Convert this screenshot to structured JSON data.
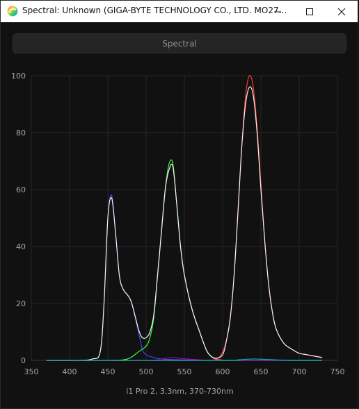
{
  "window": {
    "title": "Spectral: Unknown (GIGA-BYTE TECHNOLOGY CO., LTD. MO27...",
    "icon": "spectral-app-icon"
  },
  "controls": {
    "minimize": "minimize-icon",
    "maximize": "maximize-icon",
    "close": "close-icon"
  },
  "tab": {
    "label": "Spectral"
  },
  "footer": {
    "caption": "i1 Pro 2, 3.3nm, 370-730nm"
  },
  "colors": {
    "background": "#111111",
    "grid": "#262626",
    "blue": "#3a46ff",
    "green": "#39ff3c",
    "red": "#ff3a33",
    "white": "#f2f2f2",
    "magenta": "#a300a8",
    "cyan": "#00b3b3"
  },
  "chart_data": {
    "type": "line",
    "title": "",
    "xlabel": "",
    "ylabel": "",
    "xlim": [
      350,
      750
    ],
    "ylim": [
      0,
      100
    ],
    "grid": true,
    "x_ticks": [
      350,
      400,
      450,
      500,
      550,
      600,
      650,
      700,
      750
    ],
    "y_ticks": [
      0,
      20,
      40,
      60,
      80,
      100
    ],
    "series": [
      {
        "color": "#3a46ff",
        "x": [
          370,
          410,
          430,
          440,
          445,
          450,
          455,
          460,
          465,
          470,
          480,
          490,
          495,
          500,
          510,
          520,
          530,
          550,
          600,
          650,
          700,
          730
        ],
        "y": [
          0,
          0,
          0.5,
          3,
          20,
          50,
          58,
          45,
          30,
          25,
          21,
          10,
          4,
          2,
          1,
          0.5,
          0.3,
          0.2,
          0,
          0,
          0,
          0
        ]
      },
      {
        "color": "#39ff3c",
        "x": [
          370,
          450,
          470,
          480,
          490,
          500,
          505,
          510,
          515,
          520,
          525,
          530,
          535,
          540,
          545,
          550,
          560,
          570,
          580,
          590,
          600,
          610,
          650,
          730
        ],
        "y": [
          0,
          0,
          0.2,
          1,
          3,
          5,
          8,
          15,
          30,
          45,
          60,
          69,
          69,
          55,
          40,
          30,
          18,
          10,
          3,
          0.5,
          0,
          0,
          0,
          0
        ]
      },
      {
        "color": "#ff3a33",
        "x": [
          370,
          580,
          590,
          595,
          600,
          605,
          610,
          615,
          620,
          625,
          630,
          635,
          640,
          645,
          650,
          655,
          660,
          665,
          670,
          680,
          690,
          700,
          710,
          720,
          730
        ],
        "y": [
          0,
          0,
          0.5,
          1,
          3,
          7,
          15,
          30,
          52,
          75,
          93,
          100,
          96,
          82,
          62,
          42,
          27,
          17,
          11,
          6,
          4,
          2.5,
          2,
          1.5,
          1
        ]
      },
      {
        "color": "#f2f2f2",
        "x": [
          370,
          410,
          430,
          440,
          445,
          450,
          455,
          460,
          465,
          470,
          480,
          490,
          495,
          500,
          505,
          510,
          515,
          520,
          525,
          530,
          535,
          540,
          545,
          550,
          560,
          570,
          580,
          590,
          600,
          605,
          610,
          615,
          620,
          625,
          630,
          635,
          640,
          645,
          650,
          655,
          660,
          665,
          670,
          680,
          690,
          700,
          710,
          720,
          730
        ],
        "y": [
          0,
          0,
          0.5,
          3,
          20,
          50,
          57,
          45,
          30,
          25,
          21,
          11,
          8,
          8,
          10,
          16,
          30,
          45,
          60,
          67,
          68,
          55,
          40,
          30,
          18,
          10,
          3,
          0.8,
          2,
          7,
          15,
          30,
          52,
          75,
          90,
          96,
          93,
          80,
          60,
          42,
          27,
          17,
          11,
          6,
          4,
          2.5,
          2,
          1.5,
          1
        ]
      },
      {
        "color": "#a300a8",
        "x": [
          370,
          500,
          520,
          535,
          550,
          570,
          600,
          730
        ],
        "y": [
          0,
          0,
          0.5,
          1,
          0.6,
          0.2,
          0,
          0
        ]
      },
      {
        "color": "#00b3b3",
        "x": [
          370,
          600,
          620,
          640,
          660,
          690,
          730
        ],
        "y": [
          0,
          0,
          0.2,
          0.5,
          0.3,
          0,
          0
        ]
      }
    ]
  }
}
